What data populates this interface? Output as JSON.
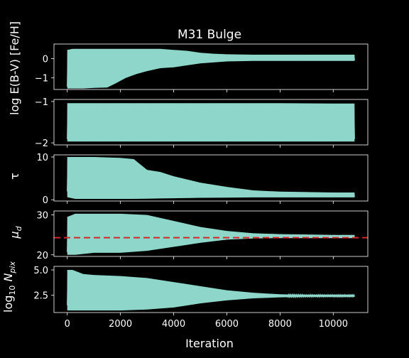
{
  "chart_data": {
    "type": "line",
    "title": "M31 Bulge",
    "xlabel": "Iteration",
    "xlim": [
      -500,
      11300
    ],
    "xticks": [
      0,
      2000,
      4000,
      6000,
      8000,
      10000
    ],
    "xtick_labels": [
      "0",
      "2000",
      "4000",
      "6000",
      "8000",
      "10000"
    ],
    "line_color": "#8dd6c9",
    "reference_color": "#d62728",
    "background": "#000000",
    "panels": [
      {
        "id": "feh",
        "ylabel": "log E(B-V) [Fe/H]",
        "ylim": [
          -1.6,
          0.75
        ],
        "yticks": [
          0,
          -1
        ],
        "ytick_labels": [
          "0",
          "−1"
        ],
        "envelope": {
          "x": [
            0,
            200,
            600,
            1000,
            1500,
            1800,
            2200,
            2600,
            3000,
            3500,
            4000,
            4500,
            5000,
            5500,
            6000,
            7000,
            8000,
            9000,
            10000,
            10800
          ],
          "low": [
            -1.55,
            -1.55,
            -1.55,
            -1.52,
            -1.5,
            -1.3,
            -1.0,
            -0.8,
            -0.65,
            -0.5,
            -0.45,
            -0.35,
            -0.25,
            -0.2,
            -0.15,
            -0.12,
            -0.12,
            -0.12,
            -0.12,
            -0.12
          ],
          "high": [
            0.45,
            0.5,
            0.5,
            0.5,
            0.5,
            0.5,
            0.5,
            0.5,
            0.5,
            0.5,
            0.45,
            0.4,
            0.3,
            0.25,
            0.22,
            0.2,
            0.2,
            0.2,
            0.2,
            0.2
          ]
        }
      },
      {
        "id": "ebv",
        "ylabel": "",
        "ylim": [
          -2.05,
          -0.95
        ],
        "yticks": [
          -1,
          -2
        ],
        "ytick_labels": [
          "−1",
          "−2"
        ],
        "envelope": {
          "x": [
            0,
            2000,
            4000,
            6000,
            8000,
            10000,
            10800
          ],
          "low": [
            -1.97,
            -1.97,
            -1.97,
            -1.97,
            -1.97,
            -1.97,
            -1.97
          ],
          "high": [
            -1.04,
            -1.04,
            -1.04,
            -1.04,
            -1.04,
            -1.05,
            -1.05
          ]
        }
      },
      {
        "id": "tau",
        "ylabel": "τ",
        "ylim": [
          -0.3,
          10.5
        ],
        "yticks": [
          10,
          0
        ],
        "ytick_labels": [
          "10",
          "0"
        ],
        "envelope": {
          "x": [
            0,
            300,
            1000,
            2000,
            2500,
            3000,
            3500,
            4000,
            5000,
            6000,
            7000,
            8000,
            9000,
            10000,
            10800
          ],
          "low": [
            0.6,
            0.2,
            0.2,
            0.2,
            0.2,
            0.25,
            0.3,
            0.35,
            0.45,
            0.5,
            0.55,
            0.55,
            0.55,
            0.55,
            0.55
          ],
          "high": [
            10,
            10,
            10,
            9.8,
            9.5,
            7,
            6.5,
            5.5,
            4,
            3,
            2.2,
            1.9,
            1.8,
            1.7,
            1.7
          ]
        }
      },
      {
        "id": "mud",
        "ylabel": "μ_d",
        "ylim": [
          19.6,
          31
        ],
        "yticks": [
          30,
          20
        ],
        "ytick_labels": [
          "30",
          "20"
        ],
        "reference_y": 24.3,
        "envelope": {
          "x": [
            0,
            300,
            1000,
            2000,
            3000,
            4000,
            5000,
            6000,
            7000,
            8000,
            9000,
            10000,
            10800
          ],
          "low": [
            20,
            20,
            20.5,
            20.5,
            21,
            22,
            23,
            23.8,
            24.1,
            24.2,
            24.2,
            24.2,
            24.2
          ],
          "high": [
            29.5,
            30.3,
            30.3,
            30.3,
            30,
            28.5,
            27,
            26,
            25.4,
            25.2,
            25.1,
            25,
            25
          ]
        }
      },
      {
        "id": "npix",
        "ylabel": "log10 N_pix",
        "ylim": [
          0.8,
          5.35
        ],
        "yticks": [
          5.0,
          2.5
        ],
        "ytick_labels": [
          "5.0",
          "2.5"
        ],
        "envelope": {
          "x": [
            0,
            200,
            600,
            1000,
            2000,
            3000,
            4000,
            5000,
            6000,
            7000,
            8000,
            9000,
            10000,
            10800
          ],
          "low": [
            1.0,
            1.0,
            1.0,
            1.0,
            1.0,
            1.1,
            1.3,
            1.7,
            2.0,
            2.2,
            2.3,
            2.35,
            2.35,
            2.35
          ],
          "high": [
            5.0,
            5.0,
            4.6,
            4.5,
            4.4,
            4.2,
            3.8,
            3.4,
            3.0,
            2.75,
            2.6,
            2.55,
            2.55,
            2.55
          ]
        }
      }
    ]
  }
}
